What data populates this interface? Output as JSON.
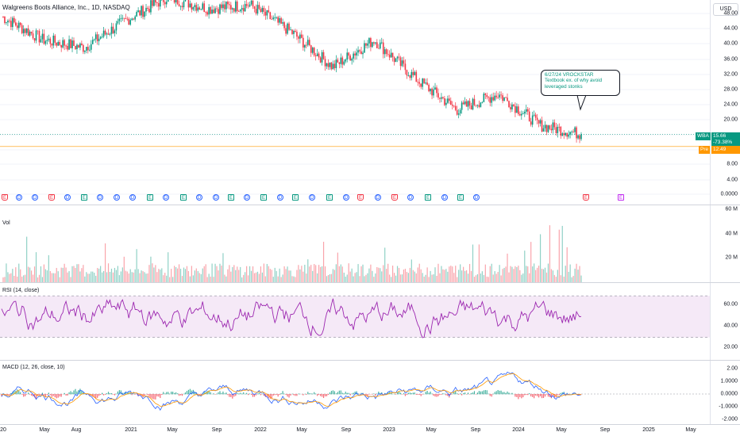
{
  "header": {
    "symbol_title": "Walgreens Boots Alliance, Inc., 1D, NASDAQ",
    "currency_button": "USD"
  },
  "price_axis": {
    "ticks": [
      "48.00",
      "44.00",
      "40.00",
      "36.00",
      "32.00",
      "28.00",
      "24.00",
      "20.00",
      "16.00",
      "12.00",
      "8.00",
      "4.00",
      "0.0000"
    ]
  },
  "price_tags": {
    "symbol": "WBA",
    "last_price": "15.66",
    "change_pct": "-73.38%",
    "pre_label": "Pre",
    "pre_price": "12.49",
    "colors": {
      "wba": "#089981",
      "pre": "#ff9800",
      "up": "#089981",
      "down": "#f23645"
    }
  },
  "annotation": {
    "line1": "6/27/24 VROCKSTAR",
    "line2": "Textbook ex. of why avoid",
    "line3": "leveraged stonks"
  },
  "events": [
    {
      "type": "ER",
      "label": "E"
    },
    {
      "type": "D",
      "label": "D"
    },
    {
      "type": "D",
      "label": "D"
    },
    {
      "type": "ER",
      "label": "E"
    },
    {
      "type": "D",
      "label": "D"
    },
    {
      "type": "E",
      "label": "E"
    },
    {
      "type": "D",
      "label": "D"
    },
    {
      "type": "D",
      "label": "D"
    },
    {
      "type": "D",
      "label": "D"
    },
    {
      "type": "E",
      "label": "E"
    },
    {
      "type": "D",
      "label": "D"
    },
    {
      "type": "E",
      "label": "E"
    },
    {
      "type": "D",
      "label": "D"
    },
    {
      "type": "D",
      "label": "D"
    },
    {
      "type": "E",
      "label": "E"
    },
    {
      "type": "D",
      "label": "D"
    },
    {
      "type": "E",
      "label": "E"
    },
    {
      "type": "D",
      "label": "D"
    },
    {
      "type": "E",
      "label": "E"
    },
    {
      "type": "D",
      "label": "D"
    },
    {
      "type": "E",
      "label": "E"
    },
    {
      "type": "D",
      "label": "D"
    },
    {
      "type": "ER",
      "label": "E"
    },
    {
      "type": "D",
      "label": "D"
    },
    {
      "type": "ER",
      "label": "E"
    },
    {
      "type": "D",
      "label": "D"
    },
    {
      "type": "E",
      "label": "E"
    },
    {
      "type": "D",
      "label": "D"
    },
    {
      "type": "E",
      "label": "E"
    },
    {
      "type": "D",
      "label": "D"
    },
    {
      "type": "ER",
      "label": "E"
    },
    {
      "type": "EF",
      "label": "E"
    }
  ],
  "volume": {
    "label": "Vol",
    "ticks": [
      "60 M",
      "40 M",
      "20 M"
    ]
  },
  "rsi": {
    "label": "RSI (14, close)",
    "ticks": [
      "60.00",
      "40.00",
      "20.00"
    ],
    "band_color": "#9c27b0"
  },
  "macd": {
    "label": "MACD (12, 26, close, 10)",
    "ticks": [
      "2.00",
      "1.0000",
      "0.0000",
      "-1.0000",
      "-2.000"
    ],
    "macd_color": "#2962ff",
    "signal_color": "#ff9800"
  },
  "time_axis": {
    "labels": [
      "20",
      "May",
      "Aug",
      "2021",
      "May",
      "Sep",
      "2022",
      "May",
      "Sep",
      "2023",
      "May",
      "Sep",
      "2024",
      "May",
      "Sep",
      "2025",
      "May"
    ]
  },
  "chart_data": {
    "type": "line",
    "title": "Walgreens Boots Alliance, Inc., 1D, NASDAQ",
    "xlabel": "",
    "ylabel": "",
    "ylim": [
      0,
      50
    ],
    "x": [
      "2020-03",
      "2020-05",
      "2020-08",
      "2021-01",
      "2021-05",
      "2021-09",
      "2022-01",
      "2022-05",
      "2022-09",
      "2023-01",
      "2023-05",
      "2023-09",
      "2024-01",
      "2024-05",
      "2024-06"
    ],
    "series": [
      {
        "name": "WBA",
        "values": [
          46,
          40,
          38,
          45,
          51,
          48,
          49,
          42,
          33,
          40,
          30,
          22,
          26,
          18,
          15.66
        ]
      }
    ],
    "last_price": 15.66,
    "premarket_price": 12.49
  }
}
